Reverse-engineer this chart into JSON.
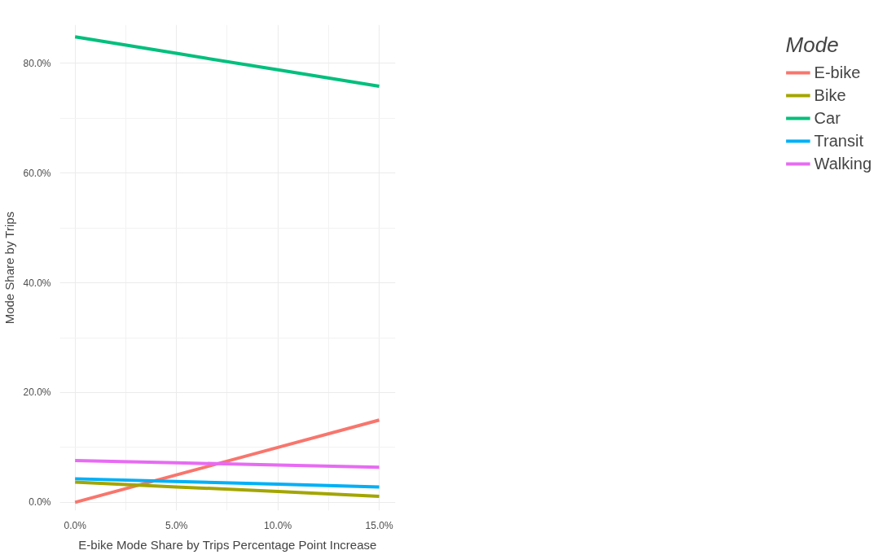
{
  "chart_data": {
    "type": "line",
    "xlabel": "E-bike Mode Share by Trips Percentage Point Increase",
    "ylabel": "Mode Share by Trips",
    "legend_title": "Mode",
    "x": [
      0,
      5,
      10,
      15
    ],
    "series": [
      {
        "name": "E-bike",
        "color": "#f8766d",
        "values": [
          0,
          5,
          10,
          15
        ]
      },
      {
        "name": "Bike",
        "color": "#a3a500",
        "values": [
          3.7,
          2.8,
          2.0,
          1.1
        ]
      },
      {
        "name": "Car",
        "color": "#00bf7d",
        "values": [
          84.8,
          81.8,
          78.8,
          75.8
        ]
      },
      {
        "name": "Transit",
        "color": "#00b0f6",
        "values": [
          4.3,
          3.8,
          3.3,
          2.8
        ]
      },
      {
        "name": "Walking",
        "color": "#e76bf3",
        "values": [
          7.6,
          7.2,
          6.8,
          6.4
        ]
      }
    ],
    "xlim": [
      -0.75,
      15.8
    ],
    "ylim": [
      -1.5,
      87
    ],
    "xticks": [
      {
        "value": 0,
        "label": "0.0%"
      },
      {
        "value": 5,
        "label": "5.0%"
      },
      {
        "value": 10,
        "label": "10.0%"
      },
      {
        "value": 15,
        "label": "15.0%"
      }
    ],
    "yticks": [
      {
        "value": 0,
        "label": "0.0%"
      },
      {
        "value": 20,
        "label": "20.0%"
      },
      {
        "value": 40,
        "label": "40.0%"
      },
      {
        "value": 60,
        "label": "60.0%"
      },
      {
        "value": 80,
        "label": "80.0%"
      }
    ],
    "grid": true,
    "legend": "right",
    "line_style": "solid"
  }
}
